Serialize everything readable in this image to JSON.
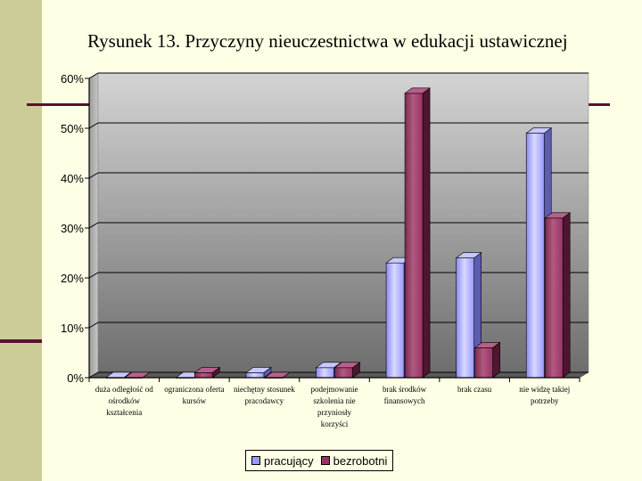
{
  "slide": {
    "title": "Rysunek 13. Przyczyny nieuczestnictwa w edukacji ustawicznej"
  },
  "colors": {
    "background": "#FFFFE6",
    "sidebar": "#CCCC99",
    "accent": "#5A1030",
    "series1": "#9999FF",
    "series2": "#993366"
  },
  "chart_data": {
    "type": "bar",
    "title": "Rysunek 13. Przyczyny nieuczestnictwa w edukacji ustawicznej",
    "categories": [
      [
        "duża odległość od",
        "ośrodków",
        "kształcenia"
      ],
      [
        "ograniczona oferta",
        "kursów"
      ],
      [
        "niechętny stosunek",
        "pracodawcy"
      ],
      [
        "podejmowanie",
        "szkolenia nie",
        "przyniosły",
        "korzyści"
      ],
      [
        "brak środków",
        "finansowych"
      ],
      [
        "brak czasu"
      ],
      [
        "nie widzę takiej",
        "potrzeby"
      ]
    ],
    "series": [
      {
        "name": "pracujący",
        "values": [
          0,
          0,
          1,
          2,
          23,
          24,
          49
        ]
      },
      {
        "name": "bezrobotni",
        "values": [
          0,
          1,
          0,
          2,
          57,
          6,
          32
        ]
      }
    ],
    "y_ticks": [
      "0%",
      "10%",
      "20%",
      "30%",
      "40%",
      "50%",
      "60%"
    ],
    "ylim": [
      0,
      60
    ],
    "grid": true,
    "three_d": true,
    "legend_position": "bottom"
  }
}
